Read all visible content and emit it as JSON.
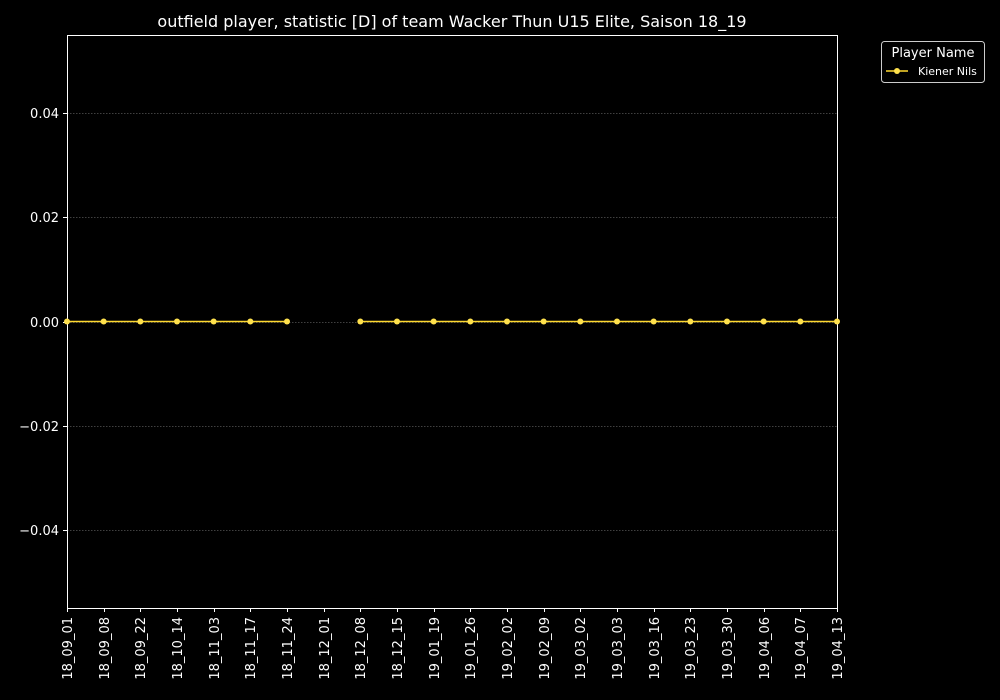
{
  "chart_data": {
    "type": "line",
    "title": "outfield player, statistic [D] of team Wacker Thun U15 Elite, Saison 18_19",
    "xlabel": "",
    "ylabel": "",
    "categories": [
      "18_09_01",
      "18_09_08",
      "18_09_22",
      "18_10_14",
      "18_11_03",
      "18_11_17",
      "18_11_24",
      "18_12_01",
      "18_12_08",
      "18_12_15",
      "19_01_19",
      "19_01_26",
      "19_02_02",
      "19_02_09",
      "19_03_02",
      "19_03_03",
      "19_03_16",
      "19_03_23",
      "19_03_30",
      "19_04_06",
      "19_04_07",
      "19_04_13"
    ],
    "ylim": [
      -0.055,
      0.055
    ],
    "yticks": [
      -0.04,
      -0.02,
      0.0,
      0.02,
      0.04
    ],
    "ytick_labels": [
      "−0.04",
      "−0.02",
      "0.00",
      "0.02",
      "0.04"
    ],
    "grid": true,
    "legend": {
      "title": "Player Name",
      "placement": "outside-top-right"
    },
    "colors": {
      "background": "#000000",
      "axes": "#ffffff",
      "grid": "#808080",
      "series_line": "#ffd92f",
      "series_marker": "#ffe14d"
    },
    "series": [
      {
        "name": "Kiener Nils",
        "values": [
          0,
          0,
          0,
          0,
          0,
          0,
          0,
          null,
          0,
          0,
          0,
          0,
          0,
          0,
          0,
          0,
          0,
          0,
          0,
          0,
          0,
          0
        ]
      }
    ]
  }
}
